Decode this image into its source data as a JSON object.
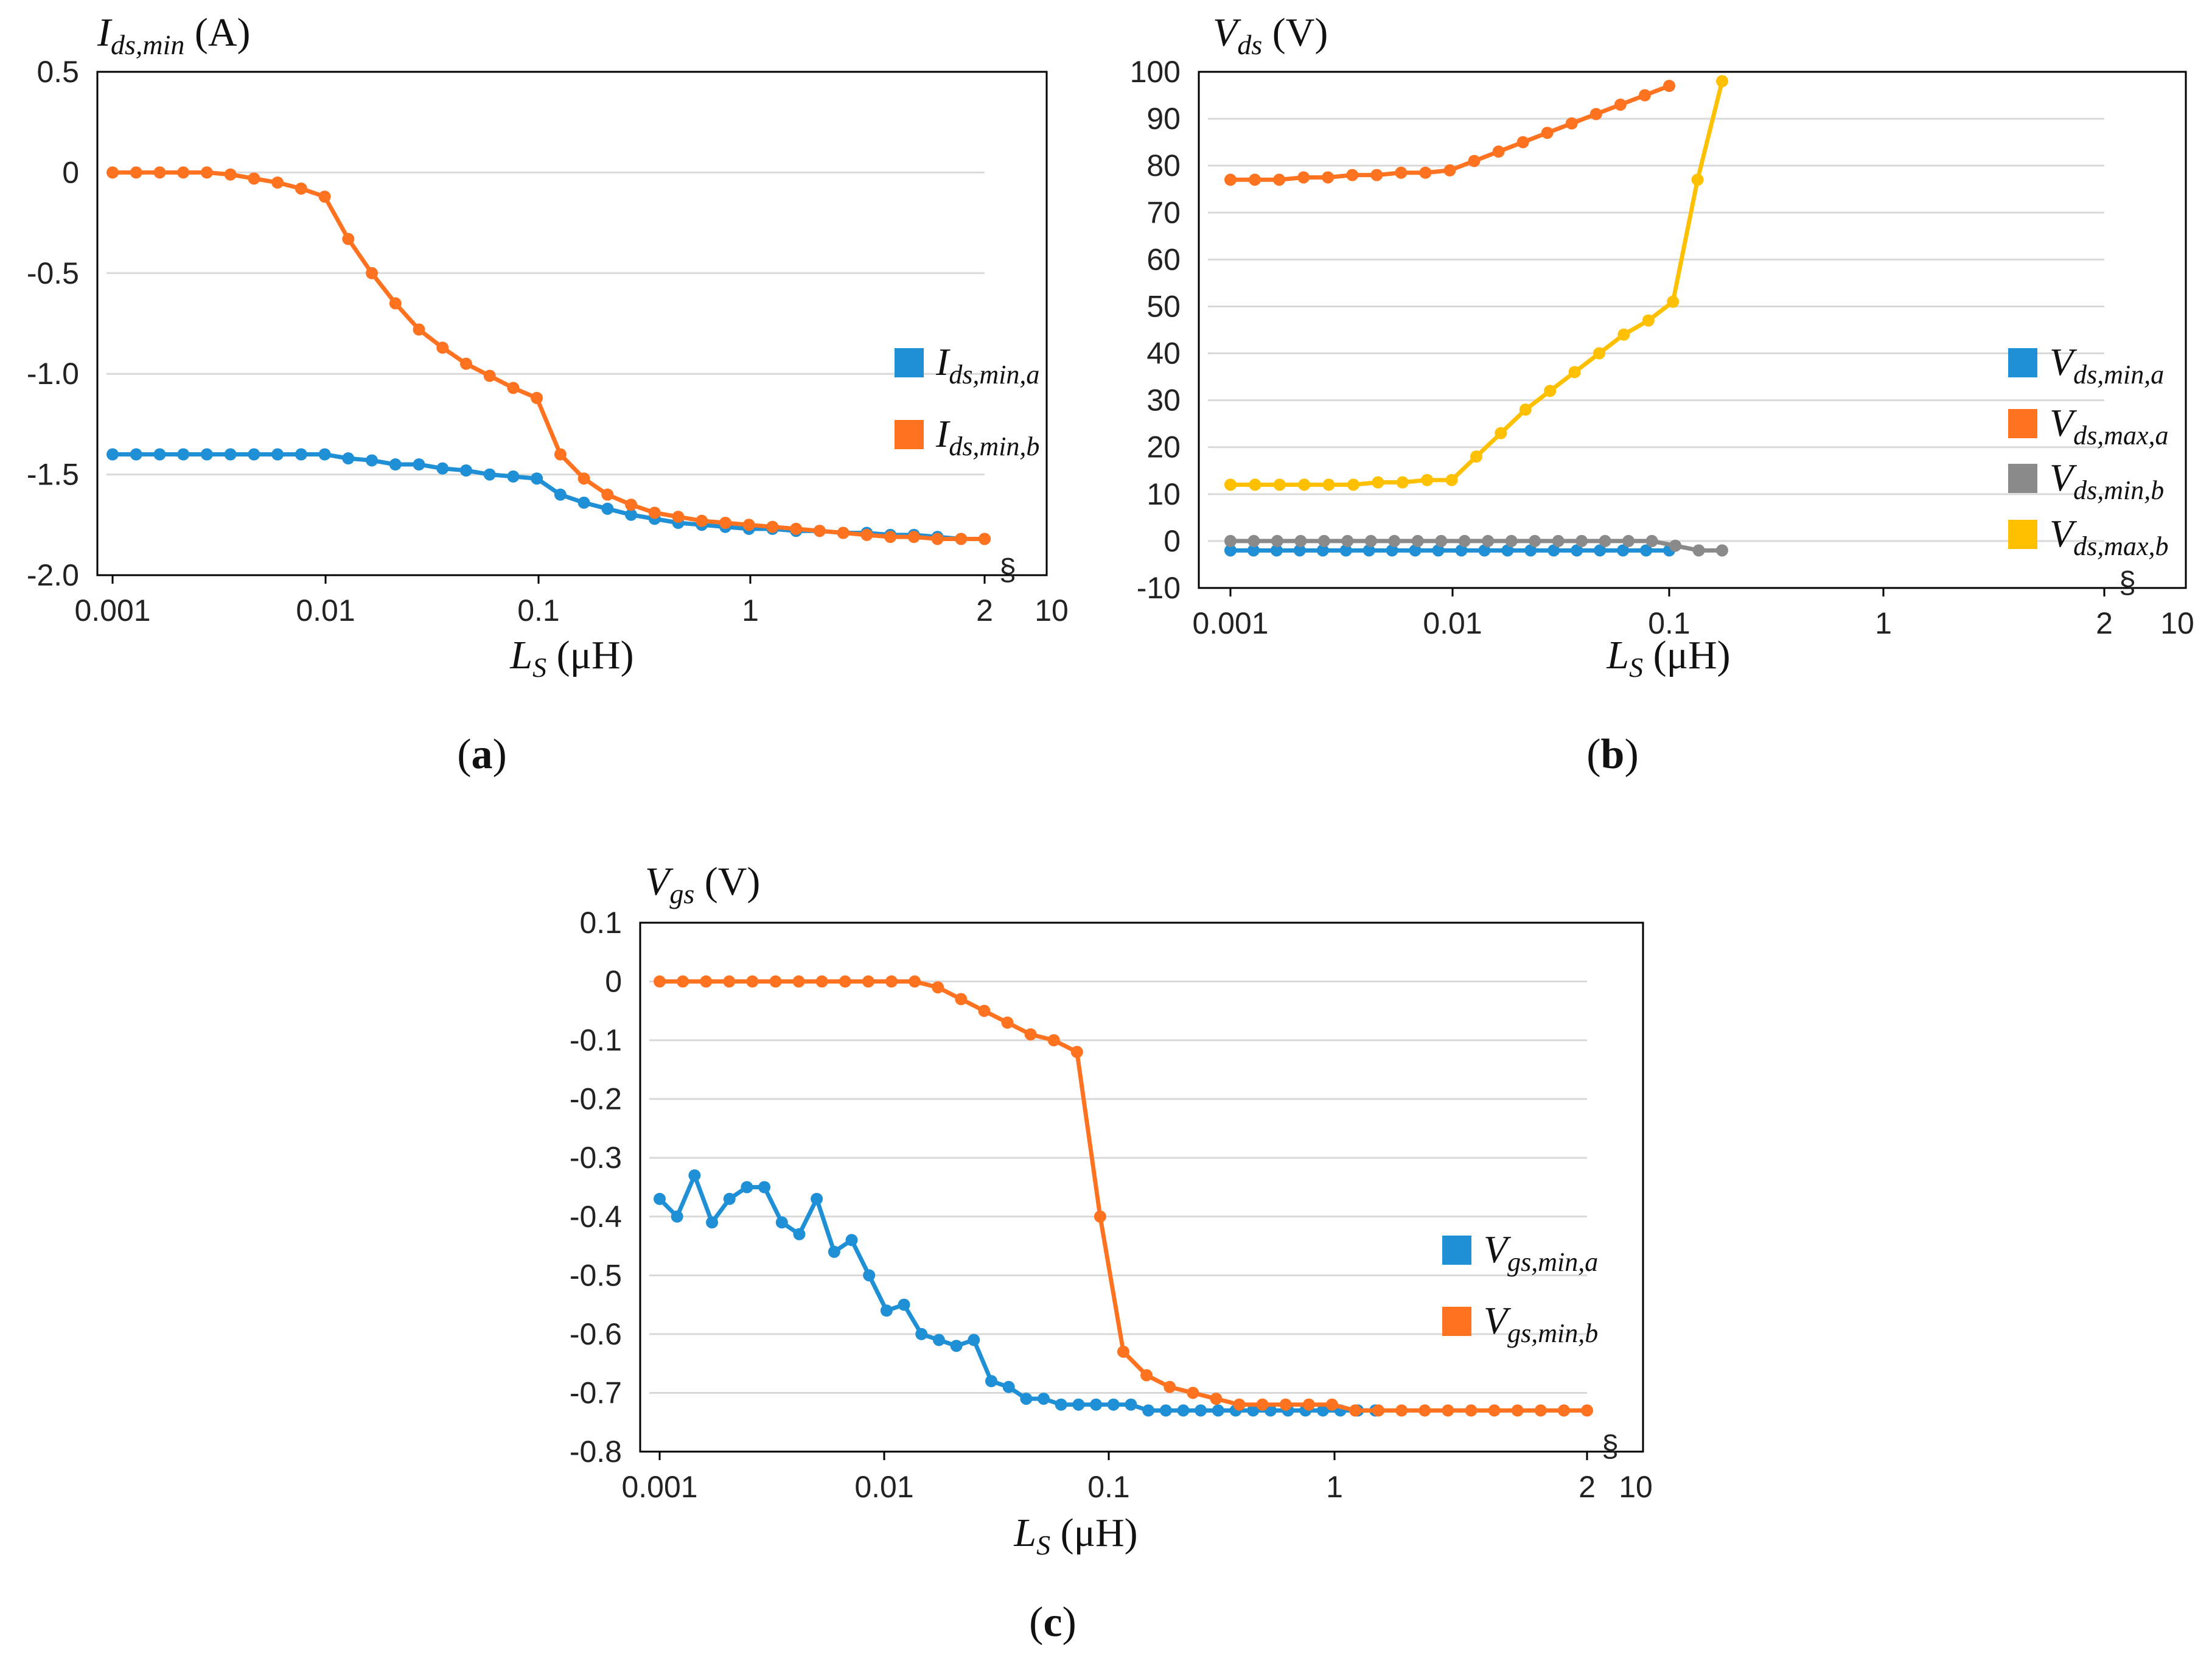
{
  "break_symbol": "§",
  "charts": [
    {
      "id": "a",
      "type": "line",
      "panel_label": "a",
      "ylabel_main": "I",
      "ylabel_sub": "ds,min",
      "ylabel_unit": " (A)",
      "xlabel_main": "L",
      "xlabel_sub": "S",
      "xlabel_unit": " (μH)",
      "y_ticks": [
        "0.5",
        "0",
        "-0.5",
        "-1.0",
        "-1.5",
        "-2.0"
      ],
      "y_tick_values": [
        0.5,
        0,
        -0.5,
        -1.0,
        -1.5,
        -2.0
      ],
      "ylim": [
        -2.0,
        0.5
      ],
      "x_ticks": [
        "0.001",
        "0.01",
        "0.1",
        "1",
        "2",
        "10"
      ],
      "series": [
        {
          "name_main": "I",
          "name_sub": "ds,min,a",
          "color": "#1f8fd6",
          "values": [
            -1.4,
            -1.4,
            -1.4,
            -1.4,
            -1.4,
            -1.4,
            -1.4,
            -1.4,
            -1.4,
            -1.4,
            -1.42,
            -1.43,
            -1.45,
            -1.45,
            -1.47,
            -1.48,
            -1.5,
            -1.51,
            -1.52,
            -1.6,
            -1.64,
            -1.67,
            -1.7,
            -1.72,
            -1.74,
            -1.75,
            -1.76,
            -1.77,
            -1.77,
            -1.78,
            -1.78,
            -1.79,
            -1.79,
            -1.8,
            -1.8,
            -1.81,
            -1.82,
            -1.82
          ]
        },
        {
          "name_main": "I",
          "name_sub": "ds,min,b",
          "color": "#ff7320",
          "values": [
            0,
            0,
            0,
            0,
            0,
            -0.01,
            -0.03,
            -0.05,
            -0.08,
            -0.12,
            -0.33,
            -0.5,
            -0.65,
            -0.78,
            -0.87,
            -0.95,
            -1.01,
            -1.07,
            -1.12,
            -1.4,
            -1.52,
            -1.6,
            -1.65,
            -1.69,
            -1.71,
            -1.73,
            -1.74,
            -1.75,
            -1.76,
            -1.77,
            -1.78,
            -1.79,
            -1.8,
            -1.81,
            -1.81,
            -1.82,
            -1.82,
            -1.82
          ]
        }
      ]
    },
    {
      "id": "b",
      "type": "line",
      "panel_label": "b",
      "ylabel_main": "V",
      "ylabel_sub": "ds",
      "ylabel_unit": " (V)",
      "xlabel_main": "L",
      "xlabel_sub": "S",
      "xlabel_unit": " (μH)",
      "y_ticks": [
        "100",
        "90",
        "80",
        "70",
        "60",
        "50",
        "40",
        "30",
        "20",
        "10",
        "0",
        "-10"
      ],
      "y_tick_values": [
        100,
        90,
        80,
        70,
        60,
        50,
        40,
        30,
        20,
        10,
        0,
        -10
      ],
      "ylim": [
        -10,
        100
      ],
      "x_ticks": [
        "0.001",
        "0.01",
        "0.1",
        "1",
        "2",
        "10"
      ],
      "series": [
        {
          "name_main": "V",
          "name_sub": "ds,min,a",
          "color": "#1f8fd6",
          "values": [
            -2,
            -2,
            -2,
            -2,
            -2,
            -2,
            -2,
            -2,
            -2,
            -2,
            -2,
            -2,
            -2,
            -2,
            -2,
            -2,
            -2,
            -2,
            -2,
            -2
          ]
        },
        {
          "name_main": "V",
          "name_sub": "ds,max,a",
          "color": "#ff7320",
          "values": [
            77,
            77,
            77,
            77.5,
            77.5,
            78,
            78,
            78.5,
            78.5,
            79,
            81,
            83,
            85,
            87,
            89,
            91,
            93,
            95,
            97
          ]
        },
        {
          "name_main": "V",
          "name_sub": "ds,min,b",
          "color": "#8a8a8a",
          "values": [
            0,
            0,
            0,
            0,
            0,
            0,
            0,
            0,
            0,
            0,
            0,
            0,
            0,
            0,
            0,
            0,
            0,
            0,
            0,
            -1,
            -2,
            -2
          ]
        },
        {
          "name_main": "V",
          "name_sub": "ds,max,b",
          "color": "#ffc000",
          "values": [
            12,
            12,
            12,
            12,
            12,
            12,
            12.5,
            12.5,
            13,
            13,
            18,
            23,
            28,
            32,
            36,
            40,
            44,
            47,
            51,
            77,
            98
          ]
        }
      ]
    },
    {
      "id": "c",
      "type": "line",
      "panel_label": "c",
      "ylabel_main": "V",
      "ylabel_sub": "gs",
      "ylabel_unit": " (V)",
      "xlabel_main": "L",
      "xlabel_sub": "S",
      "xlabel_unit": " (μH)",
      "y_ticks": [
        "0.1",
        "0",
        "-0.1",
        "-0.2",
        "-0.3",
        "-0.4",
        "-0.5",
        "-0.6",
        "-0.7",
        "-0.8"
      ],
      "y_tick_values": [
        0.1,
        0,
        -0.1,
        -0.2,
        -0.3,
        -0.4,
        -0.5,
        -0.6,
        -0.7,
        -0.8
      ],
      "ylim": [
        -0.8,
        0.1
      ],
      "x_ticks": [
        "0.001",
        "0.01",
        "0.1",
        "1",
        "2",
        "10"
      ],
      "series": [
        {
          "name_main": "V",
          "name_sub": "gs,min,a",
          "color": "#1f8fd6",
          "values": [
            -0.37,
            -0.4,
            -0.33,
            -0.41,
            -0.37,
            -0.35,
            -0.35,
            -0.41,
            -0.43,
            -0.37,
            -0.46,
            -0.44,
            -0.5,
            -0.56,
            -0.55,
            -0.6,
            -0.61,
            -0.62,
            -0.61,
            -0.68,
            -0.69,
            -0.71,
            -0.71,
            -0.72,
            -0.72,
            -0.72,
            -0.72,
            -0.72,
            -0.73,
            -0.73,
            -0.73,
            -0.73,
            -0.73,
            -0.73,
            -0.73,
            -0.73,
            -0.73,
            -0.73,
            -0.73,
            -0.73,
            -0.73,
            -0.73
          ]
        },
        {
          "name_main": "V",
          "name_sub": "gs,min,b",
          "color": "#ff7320",
          "values": [
            0,
            0,
            0,
            0,
            0,
            0,
            0,
            0,
            0,
            0,
            0,
            0,
            -0.01,
            -0.03,
            -0.05,
            -0.07,
            -0.09,
            -0.1,
            -0.12,
            -0.4,
            -0.63,
            -0.67,
            -0.69,
            -0.7,
            -0.71,
            -0.72,
            -0.72,
            -0.72,
            -0.72,
            -0.72,
            -0.73,
            -0.73,
            -0.73,
            -0.73,
            -0.73,
            -0.73,
            -0.73,
            -0.73,
            -0.73,
            -0.73,
            -0.73
          ]
        }
      ]
    }
  ]
}
